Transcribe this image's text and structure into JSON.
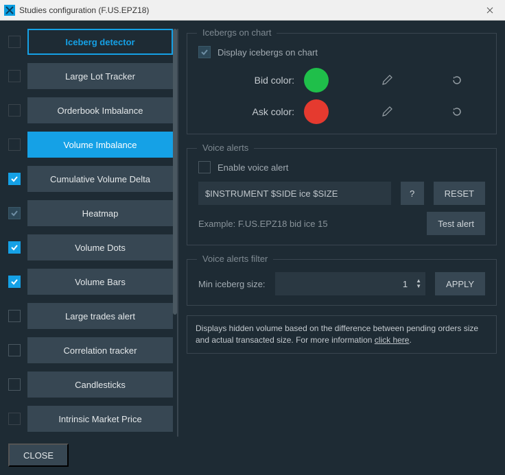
{
  "window": {
    "title": "Studies configuration (F.US.EPZ18)"
  },
  "studies": [
    {
      "label": "Iceberg detector",
      "checked": false,
      "dim": true,
      "style": "selected"
    },
    {
      "label": "Large Lot Tracker",
      "checked": false,
      "dim": true,
      "style": "normal"
    },
    {
      "label": "Orderbook Imbalance",
      "checked": false,
      "dim": true,
      "style": "normal"
    },
    {
      "label": "Volume Imbalance",
      "checked": false,
      "dim": true,
      "style": "active"
    },
    {
      "label": "Cumulative Volume Delta",
      "checked": true,
      "dim": false,
      "style": "normal"
    },
    {
      "label": "Heatmap",
      "checked": true,
      "dim": true,
      "style": "normal"
    },
    {
      "label": "Volume Dots",
      "checked": true,
      "dim": false,
      "style": "normal"
    },
    {
      "label": "Volume Bars",
      "checked": true,
      "dim": false,
      "style": "normal"
    },
    {
      "label": "Large trades alert",
      "checked": false,
      "dim": false,
      "style": "normal"
    },
    {
      "label": "Correlation tracker",
      "checked": false,
      "dim": false,
      "style": "normal"
    },
    {
      "label": "Candlesticks",
      "checked": false,
      "dim": false,
      "style": "normal"
    },
    {
      "label": "Intrinsic Market Price",
      "checked": false,
      "dim": true,
      "style": "normal"
    }
  ],
  "close_label": "CLOSE",
  "icebergs": {
    "legend": "Icebergs on chart",
    "display_label": "Display icebergs on chart",
    "display_checked": true,
    "bid_label": "Bid color:",
    "bid_color": "#1fbf4a",
    "ask_label": "Ask color:",
    "ask_color": "#e53a2f"
  },
  "voice": {
    "legend": "Voice alerts",
    "enable_label": "Enable voice alert",
    "enable_checked": false,
    "template_value": "$INSTRUMENT $SIDE ice $SIZE",
    "help_label": "?",
    "reset_label": "RESET",
    "example_prefix": "Example: ",
    "example_value": "F.US.EPZ18 bid ice 15",
    "test_label": "Test alert"
  },
  "filter": {
    "legend": "Voice alerts filter",
    "min_label": "Min iceberg size:",
    "value": "1",
    "apply_label": "APPLY"
  },
  "description": {
    "text": "Displays hidden volume based on the difference between pending orders size and actual transacted size. For more information ",
    "link": "click here"
  },
  "colors": {
    "accent": "#15a1e6",
    "panel": "#1e2b34",
    "button": "#374753",
    "input": "#2a3842",
    "border": "#3a4650"
  }
}
